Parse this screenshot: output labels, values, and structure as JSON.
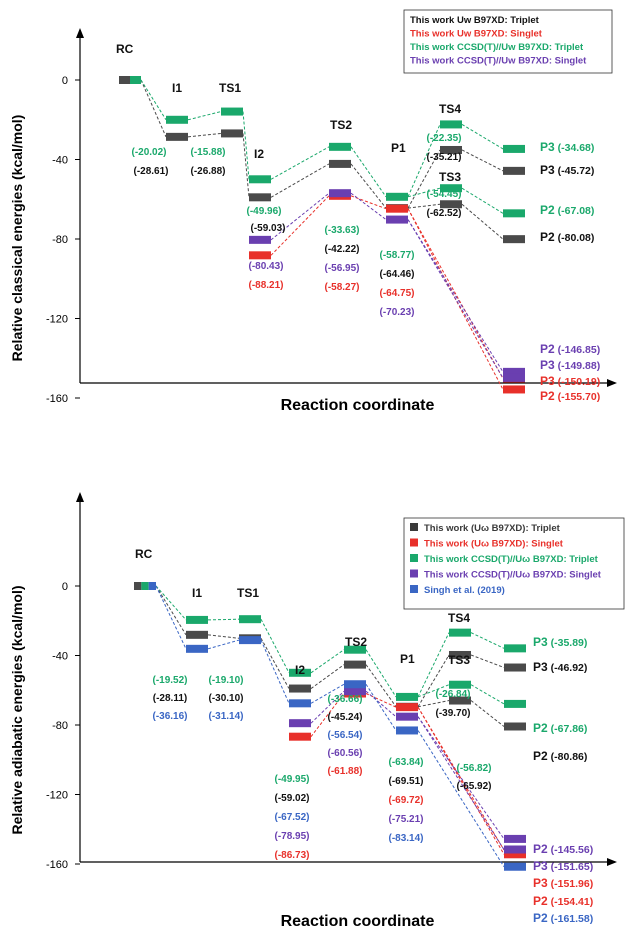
{
  "chart_data": [
    {
      "type": "line",
      "subtype": "energy-level-diagram",
      "ylabel": "Relative classical energies (kcal/mol)",
      "xlabel": "Reaction coordinate",
      "ylim": [
        -168,
        22
      ],
      "yticks": [
        0,
        -40,
        -80,
        -120,
        -160
      ],
      "legend_position": "top-right",
      "legend": [
        {
          "label": "This work Uw B97XD: Triplet",
          "color": "#111111"
        },
        {
          "label": "This work Uw B97XD: Singlet",
          "color": "#e8302a"
        },
        {
          "label": "This work CCSD(T)//Uw B97XD: Triplet",
          "color": "#1aa86b"
        },
        {
          "label": "This work CCSD(T)//Uw B97XD: Singlet",
          "color": "#6a3fb0"
        }
      ],
      "species_labels": {
        "RC": "RC",
        "I1": "I1",
        "TS1": "TS1",
        "I2": "I2",
        "TS2": "TS2",
        "P1": "P1",
        "TS4": "TS4",
        "TS3": "TS3"
      },
      "series": [
        {
          "name": "This work Uw B97XD: Triplet",
          "color": "#4a4a4a",
          "levels": {
            "RC": 0,
            "I1": -28.61,
            "TS1": -26.88,
            "I2": -59.03,
            "TS2": -42.22,
            "P1": -64.46,
            "TS4": -35.21,
            "TS3": -62.52,
            "P3": -45.72,
            "P2": -80.08
          }
        },
        {
          "name": "This work Uw B97XD: Singlet",
          "color": "#e8302a",
          "levels": {
            "I2": -88.21,
            "TS2": -58.27,
            "P1": -64.75,
            "P3": -150.19,
            "P2": -155.7
          }
        },
        {
          "name": "This work CCSD(T)//Uw B97XD: Triplet",
          "color": "#1aa86b",
          "levels": {
            "RC": 0,
            "I1": -20.02,
            "TS1": -15.88,
            "I2": -49.96,
            "TS2": -33.63,
            "P1": -58.77,
            "TS4": -22.35,
            "TS3": -54.45,
            "P3": -34.68,
            "P2": -67.08
          }
        },
        {
          "name": "This work CCSD(T)//Uw B97XD: Singlet",
          "color": "#6a3fb0",
          "levels": {
            "I2": -80.43,
            "TS2": -56.95,
            "P1": -70.23,
            "P2": -146.85,
            "P3": -149.88
          }
        }
      ],
      "value_labels": [
        {
          "text": "(-20.02)",
          "color": "#1aa86b"
        },
        {
          "text": "(-28.61)",
          "color": "#111111"
        },
        {
          "text": "(-15.88)",
          "color": "#1aa86b"
        },
        {
          "text": "(-26.88)",
          "color": "#111111"
        },
        {
          "text": "(-49.96)",
          "color": "#1aa86b"
        },
        {
          "text": "(-59.03)",
          "color": "#111111"
        },
        {
          "text": "(-80.43)",
          "color": "#6a3fb0"
        },
        {
          "text": "(-88.21)",
          "color": "#e8302a"
        },
        {
          "text": "(-33.63)",
          "color": "#1aa86b"
        },
        {
          "text": "(-42.22)",
          "color": "#111111"
        },
        {
          "text": "(-56.95)",
          "color": "#6a3fb0"
        },
        {
          "text": "(-58.27)",
          "color": "#e8302a"
        },
        {
          "text": "(-58.77)",
          "color": "#1aa86b"
        },
        {
          "text": "(-64.46)",
          "color": "#111111"
        },
        {
          "text": "(-64.75)",
          "color": "#e8302a"
        },
        {
          "text": "(-70.23)",
          "color": "#6a3fb0"
        },
        {
          "text": "(-22.35)",
          "color": "#1aa86b"
        },
        {
          "text": "(-35.21)",
          "color": "#111111"
        },
        {
          "text": "(-54.45)",
          "color": "#1aa86b"
        },
        {
          "text": "(-62.52)",
          "color": "#111111"
        }
      ],
      "product_labels": [
        {
          "name": "P3",
          "value": "(-34.68)",
          "color": "#1aa86b"
        },
        {
          "name": "P3",
          "value": "(-45.72)",
          "color": "#111111"
        },
        {
          "name": "P2",
          "value": "(-67.08)",
          "color": "#1aa86b"
        },
        {
          "name": "P2",
          "value": "(-80.08)",
          "color": "#111111"
        },
        {
          "name": "P2",
          "value": "(-146.85)",
          "color": "#6a3fb0"
        },
        {
          "name": "P3",
          "value": "(-149.88)",
          "color": "#6a3fb0"
        },
        {
          "name": "P3",
          "value": "(-150.19)",
          "color": "#e8302a"
        },
        {
          "name": "P2",
          "value": "(-155.70)",
          "color": "#e8302a"
        }
      ]
    },
    {
      "type": "line",
      "subtype": "energy-level-diagram",
      "ylabel": "Relative adiabatic energies (kcal/mol)",
      "xlabel": "Reaction coordinate",
      "ylim": [
        -172,
        22
      ],
      "yticks": [
        0,
        -40,
        -80,
        -120,
        -160
      ],
      "legend_position": "top-right",
      "legend": [
        {
          "label": "This work (Uω B97XD): Triplet",
          "color": "#3a3a3a"
        },
        {
          "label": "This work (Uω B97XD): Singlet",
          "color": "#e8302a"
        },
        {
          "label": "This work CCSD(T)//Uω B97XD: Triplet",
          "color": "#1aa86b"
        },
        {
          "label": "This work CCSD(T)//Uω B97XD: Singlet",
          "color": "#6a3fb0"
        },
        {
          "label": "Singh et al. (2019)",
          "color": "#3a66c4"
        }
      ],
      "species_labels": {
        "RC": "RC",
        "I1": "I1",
        "TS1": "TS1",
        "I2": "I2",
        "TS2": "TS2",
        "P1": "P1",
        "TS4": "TS4",
        "TS3": "TS3"
      },
      "series": [
        {
          "name": "This work (Uω B97XD): Triplet",
          "color": "#4a4a4a",
          "levels": {
            "RC": 0,
            "I1": -28.11,
            "TS1": -30.1,
            "I2": -59.02,
            "TS2": -45.24,
            "P1": -69.51,
            "TS4": -39.7,
            "TS3": -65.92,
            "P3": -46.92,
            "P2": -80.86
          }
        },
        {
          "name": "This work (Uω B97XD): Singlet",
          "color": "#e8302a",
          "levels": {
            "I2": -86.73,
            "TS2": -61.88,
            "P1": -69.72,
            "P3": -151.96,
            "P2": -154.41
          }
        },
        {
          "name": "This work CCSD(T)//Uω B97XD: Triplet",
          "color": "#1aa86b",
          "levels": {
            "RC": 0,
            "I1": -19.52,
            "TS1": -19.1,
            "I2": -49.95,
            "TS2": -36.66,
            "P1": -63.84,
            "TS4": -26.84,
            "TS3": -56.82,
            "P3": -35.89,
            "P2": -67.86
          }
        },
        {
          "name": "This work CCSD(T)//Uω B97XD: Singlet",
          "color": "#6a3fb0",
          "levels": {
            "I2": -78.95,
            "TS2": -60.56,
            "P1": -75.21,
            "P2": -145.56,
            "P3": -151.65
          }
        },
        {
          "name": "Singh et al. (2019)",
          "color": "#3a66c4",
          "levels": {
            "RC": 0,
            "I1": -36.16,
            "TS1": -31.14,
            "I2": -67.52,
            "TS2": -56.54,
            "P1": -83.14,
            "P2": -161.58
          }
        }
      ],
      "value_labels": [
        {
          "text": "(-19.52)",
          "color": "#1aa86b"
        },
        {
          "text": "(-28.11)",
          "color": "#111111"
        },
        {
          "text": "(-36.16)",
          "color": "#3a66c4"
        },
        {
          "text": "(-19.10)",
          "color": "#1aa86b"
        },
        {
          "text": "(-30.10)",
          "color": "#111111"
        },
        {
          "text": "(-31.14)",
          "color": "#3a66c4"
        },
        {
          "text": "(-49.95)",
          "color": "#1aa86b"
        },
        {
          "text": "(-59.02)",
          "color": "#111111"
        },
        {
          "text": "(-67.52)",
          "color": "#3a66c4"
        },
        {
          "text": "(-78.95)",
          "color": "#6a3fb0"
        },
        {
          "text": "(-86.73)",
          "color": "#e8302a"
        },
        {
          "text": "(-36.66)",
          "color": "#1aa86b"
        },
        {
          "text": "(-45.24)",
          "color": "#111111"
        },
        {
          "text": "(-56.54)",
          "color": "#3a66c4"
        },
        {
          "text": "(-60.56)",
          "color": "#6a3fb0"
        },
        {
          "text": "(-61.88)",
          "color": "#e8302a"
        },
        {
          "text": "(-63.84)",
          "color": "#1aa86b"
        },
        {
          "text": "(-69.51)",
          "color": "#111111"
        },
        {
          "text": "(-69.72)",
          "color": "#e8302a"
        },
        {
          "text": "(-75.21)",
          "color": "#6a3fb0"
        },
        {
          "text": "(-83.14)",
          "color": "#3a66c4"
        },
        {
          "text": "(-26.84)",
          "color": "#1aa86b"
        },
        {
          "text": "(-39.70)",
          "color": "#111111"
        },
        {
          "text": "(-56.82)",
          "color": "#1aa86b"
        },
        {
          "text": "(-65.92)",
          "color": "#111111"
        }
      ],
      "product_labels": [
        {
          "name": "P3",
          "value": "(-35.89)",
          "color": "#1aa86b"
        },
        {
          "name": "P3",
          "value": "(-46.92)",
          "color": "#111111"
        },
        {
          "name": "P2",
          "value": "(-67.86)",
          "color": "#1aa86b"
        },
        {
          "name": "P2",
          "value": "(-80.86)",
          "color": "#111111"
        },
        {
          "name": "P2",
          "value": "(-145.56)",
          "color": "#6a3fb0"
        },
        {
          "name": "P3",
          "value": "(-151.65)",
          "color": "#6a3fb0"
        },
        {
          "name": "P3",
          "value": "(-151.96)",
          "color": "#e8302a"
        },
        {
          "name": "P2",
          "value": "(-154.41)",
          "color": "#e8302a"
        },
        {
          "name": "P2",
          "value": "(-161.58)",
          "color": "#3a66c4"
        }
      ]
    }
  ]
}
